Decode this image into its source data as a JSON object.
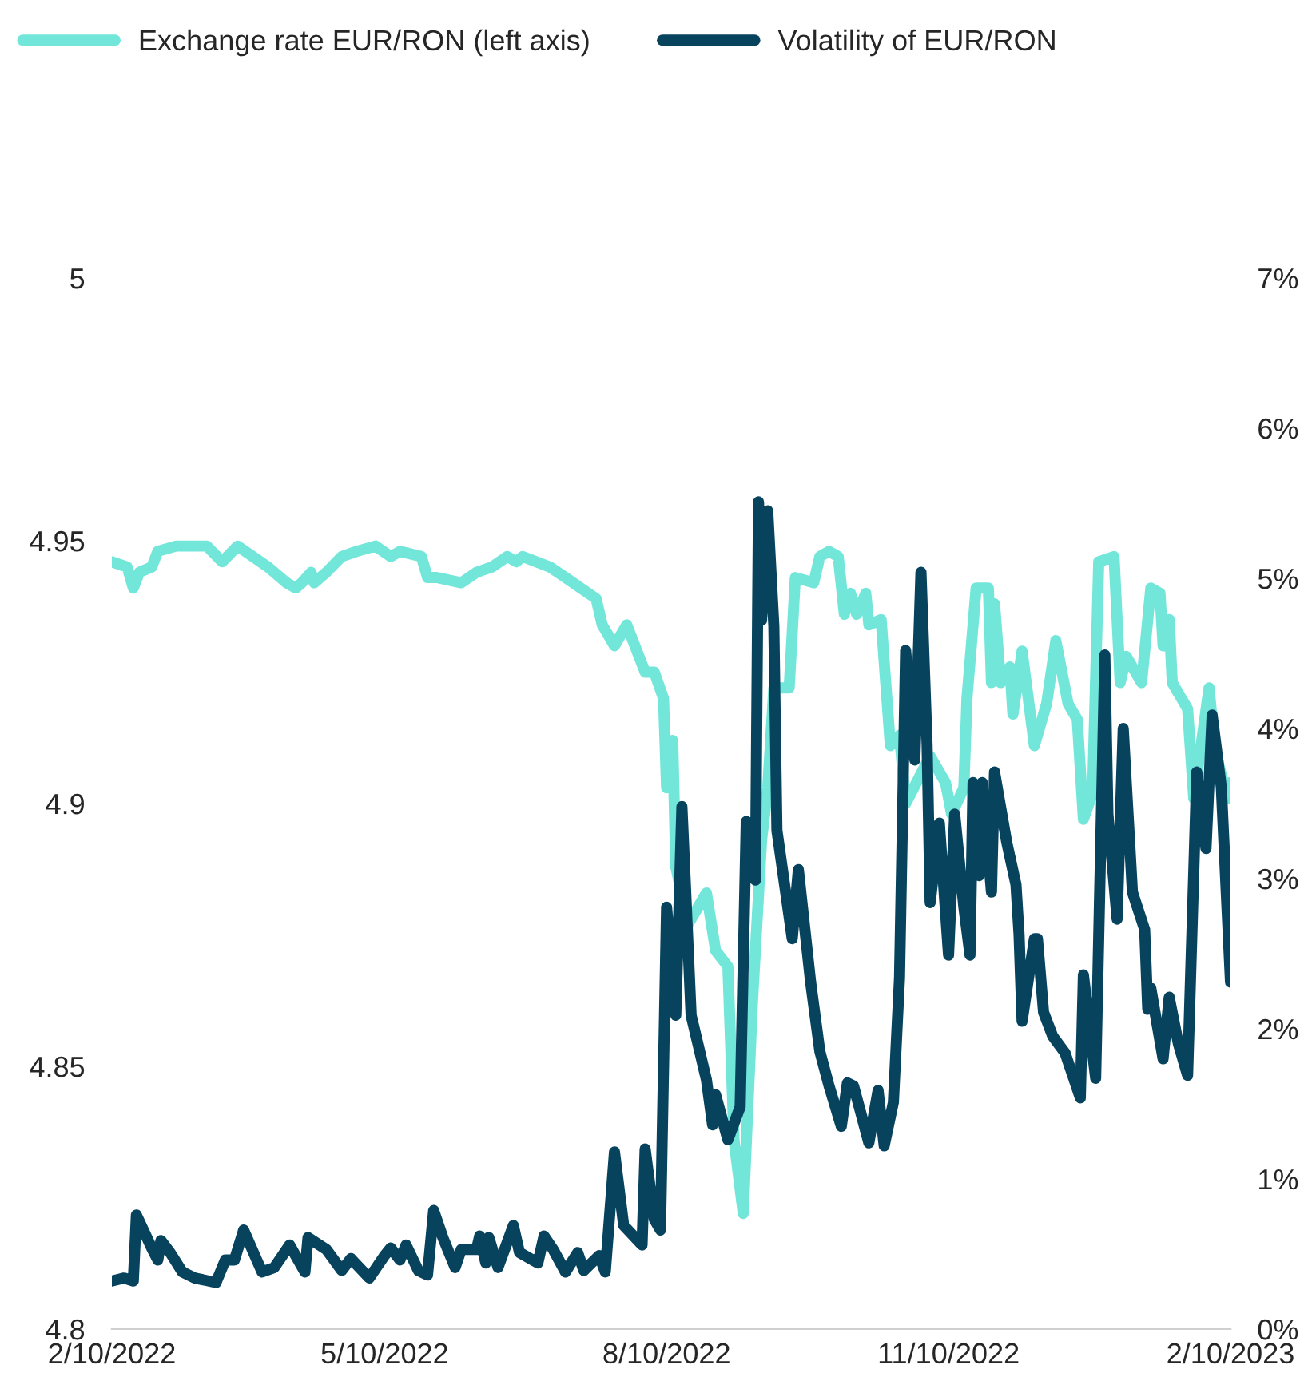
{
  "chart_data": {
    "type": "line",
    "legend": "top",
    "x": [
      "2022-02-10",
      "2022-02-15",
      "2022-02-17",
      "2022-02-19",
      "2022-02-23",
      "2022-02-25",
      "2022-03-03",
      "2022-03-13",
      "2022-03-18",
      "2022-03-23",
      "2022-03-28",
      "2022-04-02",
      "2022-04-08",
      "2022-04-11",
      "2022-04-13",
      "2022-04-16",
      "2022-04-17",
      "2022-04-21",
      "2022-04-26",
      "2022-05-01",
      "2022-05-07",
      "2022-05-12",
      "2022-05-15",
      "2022-05-22",
      "2022-05-24",
      "2022-05-27",
      "2022-06-04",
      "2022-06-09",
      "2022-06-14",
      "2022-06-19",
      "2022-06-22",
      "2022-06-24",
      "2022-07-03",
      "2022-07-08",
      "2022-07-13",
      "2022-07-18",
      "2022-07-20",
      "2022-07-24",
      "2022-07-28",
      "2022-08-03",
      "2022-08-06",
      "2022-08-09",
      "2022-08-10",
      "2022-08-12",
      "2022-08-13",
      "2022-08-17",
      "2022-08-23",
      "2022-08-26",
      "2022-08-30",
      "2022-09-01",
      "2022-09-04",
      "2022-09-07",
      "2022-09-10",
      "2022-09-12",
      "2022-09-14",
      "2022-09-19",
      "2022-09-21",
      "2022-09-27",
      "2022-09-29",
      "2022-10-02",
      "2022-10-05",
      "2022-10-07",
      "2022-10-09",
      "2022-10-11",
      "2022-10-14",
      "2022-10-15",
      "2022-10-19",
      "2022-10-22",
      "2022-10-25",
      "2022-10-27",
      "2022-11-04",
      "2022-11-09",
      "2022-11-11",
      "2022-11-15",
      "2022-11-16",
      "2022-11-19",
      "2022-11-23",
      "2022-11-24",
      "2022-11-25",
      "2022-11-27",
      "2022-11-30",
      "2022-12-01",
      "2022-12-04",
      "2022-12-08",
      "2022-12-12",
      "2022-12-15",
      "2022-12-19",
      "2022-12-22",
      "2022-12-24",
      "2022-12-27",
      "2022-12-29",
      "2023-01-03",
      "2023-01-05",
      "2023-01-07",
      "2023-01-12",
      "2023-01-15",
      "2023-01-18",
      "2023-01-19",
      "2023-01-21",
      "2023-01-22",
      "2023-01-27",
      "2023-01-29",
      "2023-02-03",
      "2023-02-05",
      "2023-02-09",
      "2023-02-10"
    ],
    "series": [
      {
        "name": "Exchange rate EUR/RON (left axis)",
        "color": "#73e6da",
        "values": [
          4.946,
          4.945,
          4.941,
          4.944,
          4.945,
          4.948,
          4.949,
          4.949,
          4.946,
          4.949,
          4.947,
          4.945,
          4.942,
          4.941,
          4.942,
          4.944,
          4.942,
          4.944,
          4.947,
          4.948,
          4.949,
          4.947,
          4.948,
          4.947,
          4.943,
          4.943,
          4.942,
          4.944,
          4.945,
          4.947,
          4.946,
          4.947,
          4.945,
          4.943,
          4.941,
          4.939,
          4.934,
          4.93,
          4.934,
          4.925,
          4.925,
          4.92,
          4.903,
          4.912,
          4.888,
          4.877,
          4.883,
          4.872,
          4.869,
          4.836,
          4.822,
          4.862,
          4.893,
          4.903,
          4.922,
          4.922,
          4.943,
          4.942,
          4.947,
          4.948,
          4.947,
          4.936,
          4.94,
          4.936,
          4.94,
          4.934,
          4.935,
          4.911,
          4.913,
          4.9,
          4.909,
          4.904,
          4.898,
          4.903,
          4.92,
          4.941,
          4.941,
          4.923,
          4.938,
          4.923,
          4.926,
          4.917,
          4.929,
          4.911,
          4.919,
          4.931,
          4.919,
          4.916,
          4.897,
          4.902,
          4.946,
          4.947,
          4.923,
          4.928,
          4.923,
          4.941,
          4.94,
          4.93,
          4.935,
          4.923,
          4.918,
          4.901,
          4.922,
          4.91,
          4.901,
          4.904
        ]
      },
      {
        "name": "Volatility of EUR/RON",
        "color": "#07435d",
        "axis": "y2",
        "x": [
          "2022-02-10",
          "2022-02-14",
          "2022-02-17",
          "2022-02-18",
          "2022-02-23",
          "2022-02-25",
          "2022-02-26",
          "2022-03-01",
          "2022-03-05",
          "2022-03-09",
          "2022-03-16",
          "2022-03-19",
          "2022-03-22",
          "2022-03-25",
          "2022-03-31",
          "2022-04-04",
          "2022-04-09",
          "2022-04-14",
          "2022-04-15",
          "2022-04-21",
          "2022-04-26",
          "2022-04-29",
          "2022-05-05",
          "2022-05-10",
          "2022-05-12",
          "2022-05-15",
          "2022-05-17",
          "2022-05-21",
          "2022-05-24",
          "2022-05-26",
          "2022-05-29",
          "2022-06-02",
          "2022-06-04",
          "2022-06-09",
          "2022-06-10",
          "2022-06-12",
          "2022-06-13",
          "2022-06-16",
          "2022-06-21",
          "2022-06-23",
          "2022-06-29",
          "2022-07-01",
          "2022-07-04",
          "2022-07-08",
          "2022-07-12",
          "2022-07-14",
          "2022-07-19",
          "2022-07-21",
          "2022-07-24",
          "2022-07-27",
          "2022-08-02",
          "2022-08-03",
          "2022-08-06",
          "2022-08-08",
          "2022-08-10",
          "2022-08-13",
          "2022-08-15",
          "2022-08-18",
          "2022-08-23",
          "2022-08-25",
          "2022-08-26",
          "2022-08-30",
          "2022-09-03",
          "2022-09-05",
          "2022-09-08",
          "2022-09-09",
          "2022-09-10",
          "2022-09-12",
          "2022-09-14",
          "2022-09-15",
          "2022-09-20",
          "2022-09-22",
          "2022-09-26",
          "2022-09-29",
          "2022-10-02",
          "2022-10-06",
          "2022-10-08",
          "2022-10-10",
          "2022-10-15",
          "2022-10-18",
          "2022-10-20",
          "2022-10-23",
          "2022-10-25",
          "2022-10-27",
          "2022-10-30",
          "2022-11-01",
          "2022-11-03",
          "2022-11-04",
          "2022-11-07",
          "2022-11-10",
          "2022-11-12",
          "2022-11-15",
          "2022-11-17",
          "2022-11-18",
          "2022-11-20",
          "2022-11-21",
          "2022-11-24",
          "2022-11-25",
          "2022-11-29",
          "2022-12-02",
          "2022-12-03",
          "2022-12-04",
          "2022-12-08",
          "2022-12-09",
          "2022-12-11",
          "2022-12-14",
          "2022-12-18",
          "2022-12-23",
          "2022-12-24",
          "2022-12-28",
          "2022-12-31",
          "2023-01-01",
          "2023-01-04",
          "2023-01-06",
          "2023-01-09",
          "2023-01-13",
          "2023-01-14",
          "2023-01-15",
          "2023-01-19",
          "2023-01-21",
          "2023-01-24",
          "2023-01-27",
          "2023-01-30",
          "2023-02-02",
          "2023-02-04",
          "2023-02-07",
          "2023-02-10"
        ],
        "values": [
          0.32,
          0.34,
          0.32,
          0.76,
          0.54,
          0.46,
          0.59,
          0.51,
          0.38,
          0.34,
          0.31,
          0.46,
          0.46,
          0.66,
          0.38,
          0.41,
          0.56,
          0.38,
          0.61,
          0.53,
          0.39,
          0.47,
          0.34,
          0.49,
          0.54,
          0.46,
          0.56,
          0.39,
          0.36,
          0.79,
          0.61,
          0.41,
          0.53,
          0.53,
          0.62,
          0.44,
          0.61,
          0.41,
          0.69,
          0.51,
          0.44,
          0.62,
          0.53,
          0.38,
          0.51,
          0.39,
          0.49,
          0.38,
          1.18,
          0.69,
          0.56,
          1.2,
          0.73,
          0.66,
          2.81,
          2.09,
          3.48,
          2.09,
          1.66,
          1.36,
          1.56,
          1.26,
          1.48,
          3.38,
          2.99,
          5.51,
          4.72,
          5.45,
          4.68,
          3.32,
          2.6,
          3.06,
          2.31,
          1.85,
          1.62,
          1.35,
          1.64,
          1.62,
          1.24,
          1.59,
          1.22,
          1.51,
          2.34,
          4.52,
          3.79,
          5.04,
          3.89,
          2.84,
          3.37,
          2.49,
          3.43,
          2.81,
          2.49,
          3.64,
          3.02,
          3.64,
          2.91,
          3.71,
          3.24,
          2.96,
          2.63,
          2.05,
          2.6,
          2.6,
          2.11,
          1.95,
          1.84,
          1.54,
          2.36,
          1.67,
          4.49,
          3.43,
          2.73,
          4.0,
          2.91,
          2.66,
          2.13,
          2.27,
          1.8,
          2.21,
          1.9,
          1.69,
          3.71,
          3.2,
          4.09,
          3.61,
          2.31
        ]
      }
    ],
    "xlim": [
      "2022-02-10",
      "2023-02-10"
    ],
    "xticks": [
      {
        "value": "2022-02-10",
        "label": "2/10/2022"
      },
      {
        "value": "2022-05-10",
        "label": "5/10/2022"
      },
      {
        "value": "2022-08-10",
        "label": "8/10/2022"
      },
      {
        "value": "2022-11-10",
        "label": "11/10/2022"
      },
      {
        "value": "2023-02-10",
        "label": "2/10/2023"
      }
    ],
    "ylim": [
      4.8,
      5.0
    ],
    "yticks": [
      4.8,
      4.85,
      4.9,
      4.95,
      5
    ],
    "y2lim": [
      0,
      7
    ],
    "y2ticks": [
      {
        "value": 0,
        "label": "0%"
      },
      {
        "value": 1,
        "label": "1%"
      },
      {
        "value": 2,
        "label": "2%"
      },
      {
        "value": 3,
        "label": "3%"
      },
      {
        "value": 4,
        "label": "4%"
      },
      {
        "value": 5,
        "label": "5%"
      },
      {
        "value": 6,
        "label": "6%"
      },
      {
        "value": 7,
        "label": "7%"
      }
    ]
  }
}
